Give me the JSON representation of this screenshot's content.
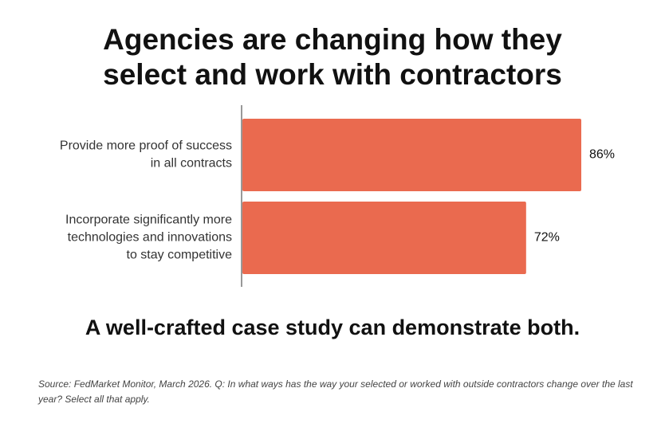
{
  "chart_data": {
    "type": "bar",
    "orientation": "horizontal",
    "title_lines": [
      "Agencies are changing how they",
      "select and work with contractors"
    ],
    "categories": [
      [
        "Provide more proof of success",
        "in all contracts"
      ],
      [
        "Incorporate significantly more",
        "technologies and innovations",
        "to stay competitive"
      ]
    ],
    "values": [
      86,
      72
    ],
    "value_labels": [
      "86%",
      "72%"
    ],
    "xlim": [
      0,
      86
    ],
    "bar_color": "#EA6A4F",
    "axis_color": "#555555",
    "grid": false,
    "legend": "none"
  },
  "tagline": "A well-crafted case study can demonstrate both.",
  "source_note": "Source: FedMarket Monitor, March 2026. Q: In what ways has the way your selected or worked with outside contractors change over the last year? Select all that apply."
}
